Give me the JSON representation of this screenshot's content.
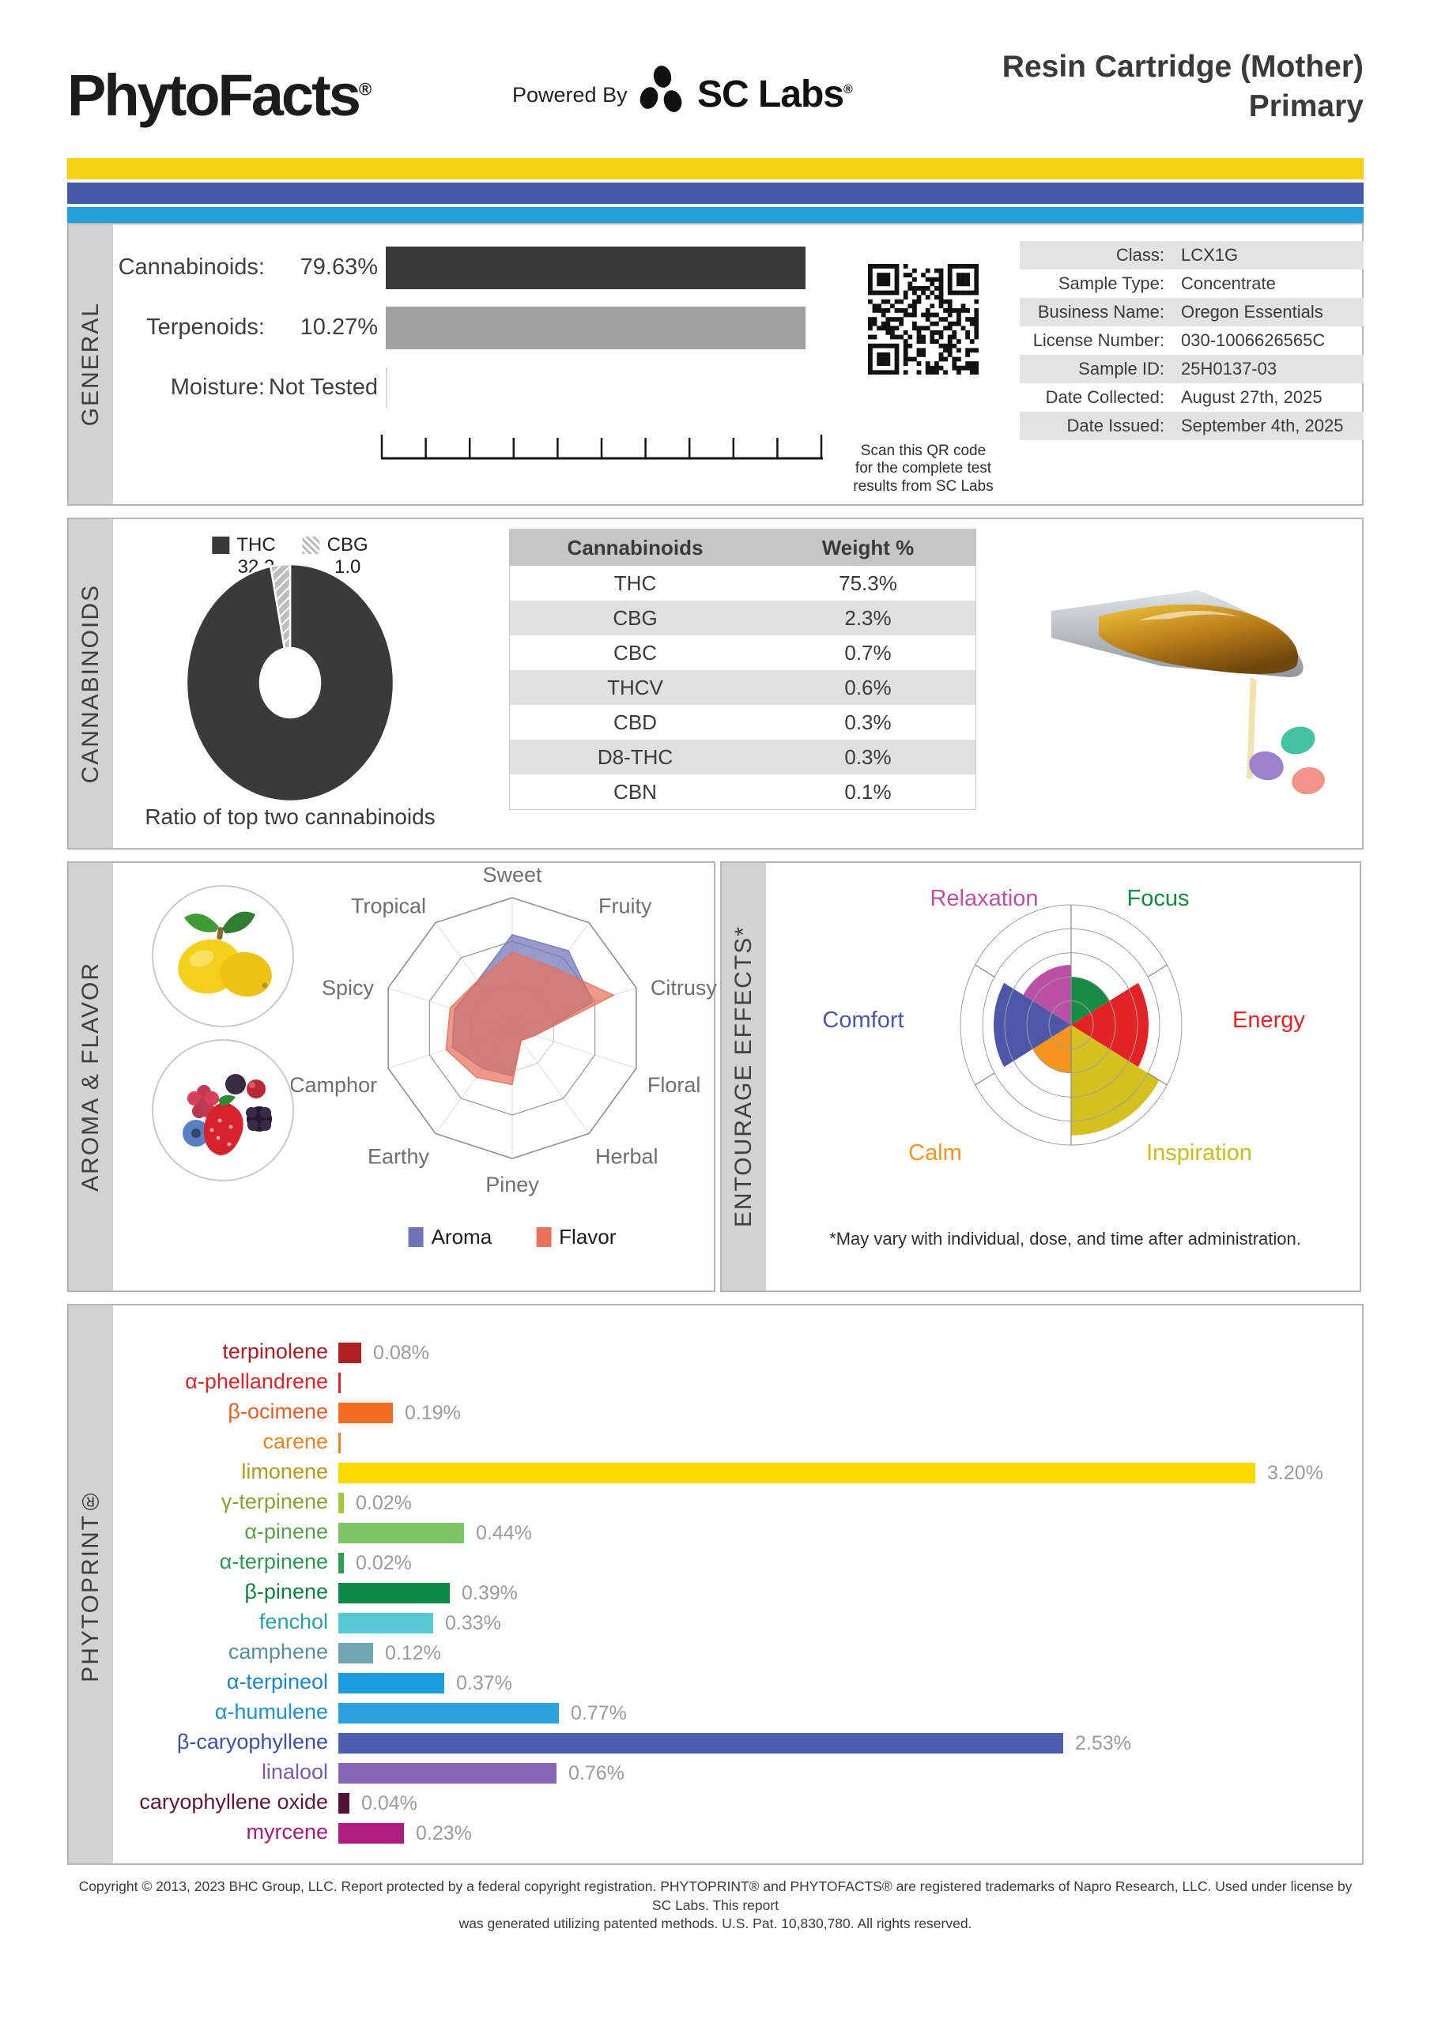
{
  "header": {
    "brand": "PhytoFacts",
    "brand_reg": "®",
    "powered_by": "Powered By",
    "lab_name": "SC Labs",
    "lab_reg": "®",
    "title_line1": "Resin Cartridge (Mother)",
    "title_line2": "Primary",
    "stripe_colors": [
      "#f5d211",
      "#4459a8",
      "#259fd9"
    ]
  },
  "sections": {
    "general": "GENERAL",
    "cannabinoids": "CANNABINOIDS",
    "aroma": "AROMA & FLAVOR",
    "entourage": "ENTOURAGE EFFECTS*",
    "phytoprint": "PHYTOPRINT®"
  },
  "general": {
    "rows": [
      {
        "label": "Cannabinoids:",
        "value": "79.63%",
        "bar": true,
        "bar_color": "#3a3a3a"
      },
      {
        "label": "Terpenoids:",
        "value": "10.27%",
        "bar": true,
        "bar_color": "#a0a0a0"
      },
      {
        "label": "Moisture:",
        "value": "Not Tested",
        "bar": false,
        "bar_color": ""
      }
    ],
    "qr_caption_lines": [
      "Scan this QR code",
      "for the complete test",
      "results from SC Labs"
    ],
    "info_table": [
      {
        "label": "Class:",
        "value": "LCX1G"
      },
      {
        "label": "Sample Type:",
        "value": "Concentrate"
      },
      {
        "label": "Business Name:",
        "value": "Oregon Essentials"
      },
      {
        "label": "License Number:",
        "value": "030-1006626565C"
      },
      {
        "label": "Sample ID:",
        "value": "25H0137-03"
      },
      {
        "label": "Date Collected:",
        "value": "August 27th, 2025"
      },
      {
        "label": "Date Issued:",
        "value": "September 4th, 2025"
      }
    ]
  },
  "cannabinoids": {
    "legend": [
      {
        "name": "THC",
        "value": "32.2",
        "color": "#3a3a3a",
        "hatch": false
      },
      {
        "name": "CBG",
        "value": "1.0",
        "color": "#bdbdbd",
        "hatch": true
      }
    ],
    "caption": "Ratio of top two cannabinoids",
    "table": {
      "headers": [
        "Cannabinoids",
        "Weight %"
      ],
      "rows": [
        [
          "THC",
          "75.3%"
        ],
        [
          "CBG",
          "2.3%"
        ],
        [
          "CBC",
          "0.7%"
        ],
        [
          "THCV",
          "0.6%"
        ],
        [
          "CBD",
          "0.3%"
        ],
        [
          "D8-THC",
          "0.3%"
        ],
        [
          "CBN",
          "0.1%"
        ]
      ]
    }
  },
  "entourage": {
    "footnote": "*May vary with individual, dose, and time after administration."
  },
  "footer": {
    "line1": "Copyright © 2013, 2023 BHC Group, LLC. Report protected by a federal copyright registration. PHYTOPRINT® and PHYTOFACTS® are registered trademarks of Napro Research, LLC. Used under license by SC Labs. This report",
    "line2": "was generated utilizing patented methods. U.S. Pat. 10,830,780. All rights reserved."
  },
  "chart_data": [
    {
      "id": "cannabinoid_ratio_donut",
      "type": "pie",
      "title": "Ratio of top two cannabinoids",
      "slices": [
        {
          "label": "THC",
          "value": 32.2,
          "color": "#3a3a3a",
          "hatch": false
        },
        {
          "label": "CBG",
          "value": 1.0,
          "color": "#bdbdbd",
          "hatch": true
        }
      ]
    },
    {
      "id": "aroma_flavor_radar",
      "type": "radar",
      "rmax": 3,
      "categories": [
        "Sweet",
        "Fruity",
        "Citrusy",
        "Floral",
        "Herbal",
        "Piney",
        "Earthy",
        "Camphor",
        "Spicy",
        "Tropical"
      ],
      "series": [
        {
          "name": "Aroma",
          "color": "#6f74b9",
          "values": [
            2.15,
            2.2,
            1.95,
            0.55,
            0.35,
            1.1,
            1.15,
            1.45,
            1.4,
            1.35
          ]
        },
        {
          "name": "Flavor",
          "color": "#e8715c",
          "values": [
            1.75,
            1.7,
            2.45,
            0.55,
            0.35,
            1.3,
            1.4,
            1.6,
            1.5,
            1.35
          ]
        }
      ],
      "legend_position": "bottom"
    },
    {
      "id": "entourage_rose",
      "type": "rose",
      "rmax": 5,
      "sectors": [
        {
          "label": "Focus",
          "value": 2.0,
          "color": "#188c44",
          "label_color": "#0f8a40"
        },
        {
          "label": "Energy",
          "value": 3.5,
          "color": "#e32226",
          "label_color": "#ed2024"
        },
        {
          "label": "Inspiration",
          "value": 4.6,
          "color": "#d4c11f",
          "label_color": "#cdbb1c"
        },
        {
          "label": "Calm",
          "value": 2.0,
          "color": "#f79420",
          "label_color": "#f79420"
        },
        {
          "label": "Comfort",
          "value": 3.5,
          "color": "#4c57a7",
          "label_color": "#4c57a7"
        },
        {
          "label": "Relaxation",
          "value": 2.5,
          "color": "#bc50a5",
          "label_color": "#bc50a5"
        }
      ]
    },
    {
      "id": "phytoprint_bars",
      "type": "bar",
      "xlabel": "",
      "ylabel": "",
      "xmax": 3.2,
      "bars": [
        {
          "label": "terpinolene",
          "value": 0.08,
          "display": "0.08%",
          "label_color": "#a92023",
          "bar_color": "#b22024",
          "tick": false
        },
        {
          "label": "α-phellandrene",
          "value": 0.0,
          "display": "",
          "label_color": "#e0242b",
          "bar_color": "#e0242b",
          "tick": true
        },
        {
          "label": "β-ocimene",
          "value": 0.19,
          "display": "0.19%",
          "label_color": "#ea5a28",
          "bar_color": "#f26c22",
          "tick": false
        },
        {
          "label": "carene",
          "value": 0.0,
          "display": "",
          "label_color": "#e98426",
          "bar_color": "#e98426",
          "tick": true
        },
        {
          "label": "limonene",
          "value": 3.2,
          "display": "3.20%",
          "label_color": "#b3991d",
          "bar_color": "#fdd903",
          "tick": false
        },
        {
          "label": "γ-terpinene",
          "value": 0.02,
          "display": "0.02%",
          "label_color": "#8aa032",
          "bar_color": "#a5c93e",
          "tick": false
        },
        {
          "label": "α-pinene",
          "value": 0.44,
          "display": "0.44%",
          "label_color": "#59a04a",
          "bar_color": "#7dc464",
          "tick": false
        },
        {
          "label": "α-terpinene",
          "value": 0.02,
          "display": "0.02%",
          "label_color": "#2b9751",
          "bar_color": "#2f9e4f",
          "tick": false
        },
        {
          "label": "β-pinene",
          "value": 0.39,
          "display": "0.39%",
          "label_color": "#0c7f41",
          "bar_color": "#0b8a45",
          "tick": false
        },
        {
          "label": "fenchol",
          "value": 0.33,
          "display": "0.33%",
          "label_color": "#27a0a8",
          "bar_color": "#58c8d2",
          "tick": false
        },
        {
          "label": "camphene",
          "value": 0.12,
          "display": "0.12%",
          "label_color": "#578fa0",
          "bar_color": "#73a6b3",
          "tick": false
        },
        {
          "label": "α-terpineol",
          "value": 0.37,
          "display": "0.37%",
          "label_color": "#1a85c8",
          "bar_color": "#1b9ddb",
          "tick": false
        },
        {
          "label": "α-humulene",
          "value": 0.77,
          "display": "0.77%",
          "label_color": "#2190d2",
          "bar_color": "#2ba2de",
          "tick": false
        },
        {
          "label": "β-caryophyllene",
          "value": 2.53,
          "display": "2.53%",
          "label_color": "#3d50a2",
          "bar_color": "#4a5fb2",
          "tick": false
        },
        {
          "label": "linalool",
          "value": 0.76,
          "display": "0.76%",
          "label_color": "#7e58ae",
          "bar_color": "#8767b8",
          "tick": false
        },
        {
          "label": "caryophyllene oxide",
          "value": 0.04,
          "display": "0.04%",
          "label_color": "#5d1742",
          "bar_color": "#531038",
          "tick": false
        },
        {
          "label": "myrcene",
          "value": 0.23,
          "display": "0.23%",
          "label_color": "#a61a7a",
          "bar_color": "#b01d80",
          "tick": false
        }
      ]
    }
  ]
}
